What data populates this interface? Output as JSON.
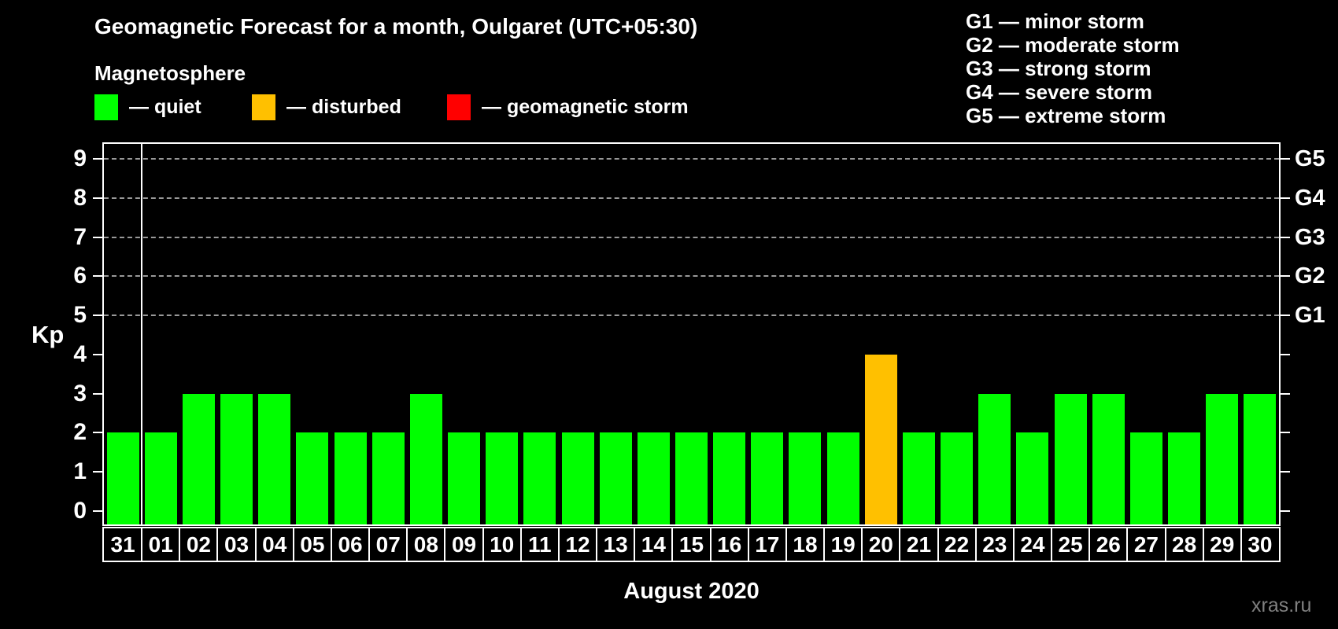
{
  "header": {
    "title": "Geomagnetic Forecast for a month, Oulgaret (UTC+05:30)",
    "subtitle": "Magnetosphere"
  },
  "condition_legend": [
    {
      "name": "quiet",
      "label": "— quiet",
      "color": "#00ff00"
    },
    {
      "name": "disturbed",
      "label": "— disturbed",
      "color": "#ffc000"
    },
    {
      "name": "storm",
      "label": "— geomagnetic storm",
      "color": "#ff0000"
    }
  ],
  "storm_scale_legend": [
    "G1 — minor storm",
    "G2 — moderate storm",
    "G3 — strong storm",
    "G4 — severe storm",
    "G5 — extreme storm"
  ],
  "watermark": "xras.ru",
  "chart_data": {
    "type": "bar",
    "title": "Geomagnetic Forecast for a month, Oulgaret (UTC+05:30)",
    "xlabel": "August 2020",
    "ylabel": "Kp",
    "ylim": [
      0,
      9.4
    ],
    "yticks": [
      0,
      1,
      2,
      3,
      4,
      5,
      6,
      7,
      8,
      9
    ],
    "grid_kp": [
      5,
      6,
      7,
      8,
      9
    ],
    "grid_style": "dashed horizontal lines at G-storm levels",
    "right_axis": [
      {
        "code": "G1",
        "kp": 5
      },
      {
        "code": "G2",
        "kp": 6
      },
      {
        "code": "G3",
        "kp": 7
      },
      {
        "code": "G4",
        "kp": 8
      },
      {
        "code": "G5",
        "kp": 9
      }
    ],
    "categories": [
      "31",
      "01",
      "02",
      "03",
      "04",
      "05",
      "06",
      "07",
      "08",
      "09",
      "10",
      "11",
      "12",
      "13",
      "14",
      "15",
      "16",
      "17",
      "18",
      "19",
      "20",
      "21",
      "22",
      "23",
      "24",
      "25",
      "26",
      "27",
      "28",
      "29",
      "30"
    ],
    "values": [
      2,
      2,
      3,
      3,
      3,
      2,
      2,
      2,
      3,
      2,
      2,
      2,
      2,
      2,
      2,
      2,
      2,
      2,
      2,
      2,
      4,
      2,
      2,
      3,
      2,
      3,
      3,
      2,
      2,
      3,
      3
    ],
    "statuses": [
      "quiet",
      "quiet",
      "quiet",
      "quiet",
      "quiet",
      "quiet",
      "quiet",
      "quiet",
      "quiet",
      "quiet",
      "quiet",
      "quiet",
      "quiet",
      "quiet",
      "quiet",
      "quiet",
      "quiet",
      "quiet",
      "quiet",
      "quiet",
      "disturbed",
      "quiet",
      "quiet",
      "quiet",
      "quiet",
      "quiet",
      "quiet",
      "quiet",
      "quiet",
      "quiet",
      "quiet"
    ],
    "status_colors": {
      "quiet": "#00ff00",
      "disturbed": "#ffc000",
      "storm": "#ff0000"
    },
    "separator_after_index": 0,
    "colors": {
      "background": "#000000",
      "text": "#ffffff",
      "frame": "#ffffff",
      "gridline": "#999999",
      "watermark": "#808080"
    }
  }
}
